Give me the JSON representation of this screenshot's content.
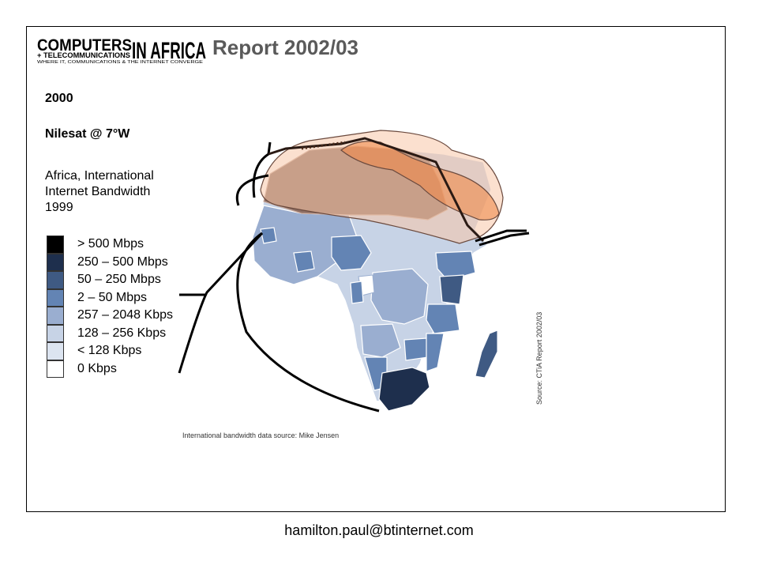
{
  "logo": {
    "line1": "COMPUTERS",
    "line2": "IN AFRICA",
    "line3": "+ TELECOMMUNICATIONS",
    "tagline": "WHERE IT, COMMUNICATIONS & THE INTERNET CONVERGE"
  },
  "report_title": "Report 2002/03",
  "year": "2000",
  "satellite": "Nilesat @ 7°W",
  "map_title": [
    "Africa, International",
    "Internet Bandwidth",
    "1999"
  ],
  "legend": [
    {
      "label": "> 500 Mbps",
      "color": "#000000"
    },
    {
      "label": "250 – 500 Mbps",
      "color": "#1e2f4d"
    },
    {
      "label": "50 – 250 Mbps",
      "color": "#3f5a83"
    },
    {
      "label": "2 – 50 Mbps",
      "color": "#6384b4"
    },
    {
      "label": "257 – 2048 Kbps",
      "color": "#9aaed0"
    },
    {
      "label": "128 – 256 Kbps",
      "color": "#c7d3e6"
    },
    {
      "label": "< 128 Kbps",
      "color": "#dce4f0"
    },
    {
      "label": "0 Kbps",
      "color": "#ffffff"
    }
  ],
  "source_right": "Source: CTiA Report 2002/03",
  "source_bottom": "International bandwidth data source: Mike Jensen",
  "footer_email": "hamilton.paul@btinternet.com",
  "colors": {
    "footprint_outer": "#f7c6a8",
    "footprint_inner": "#f08a4b",
    "north_africa": "#8c6a5e",
    "cable": "#000000"
  }
}
